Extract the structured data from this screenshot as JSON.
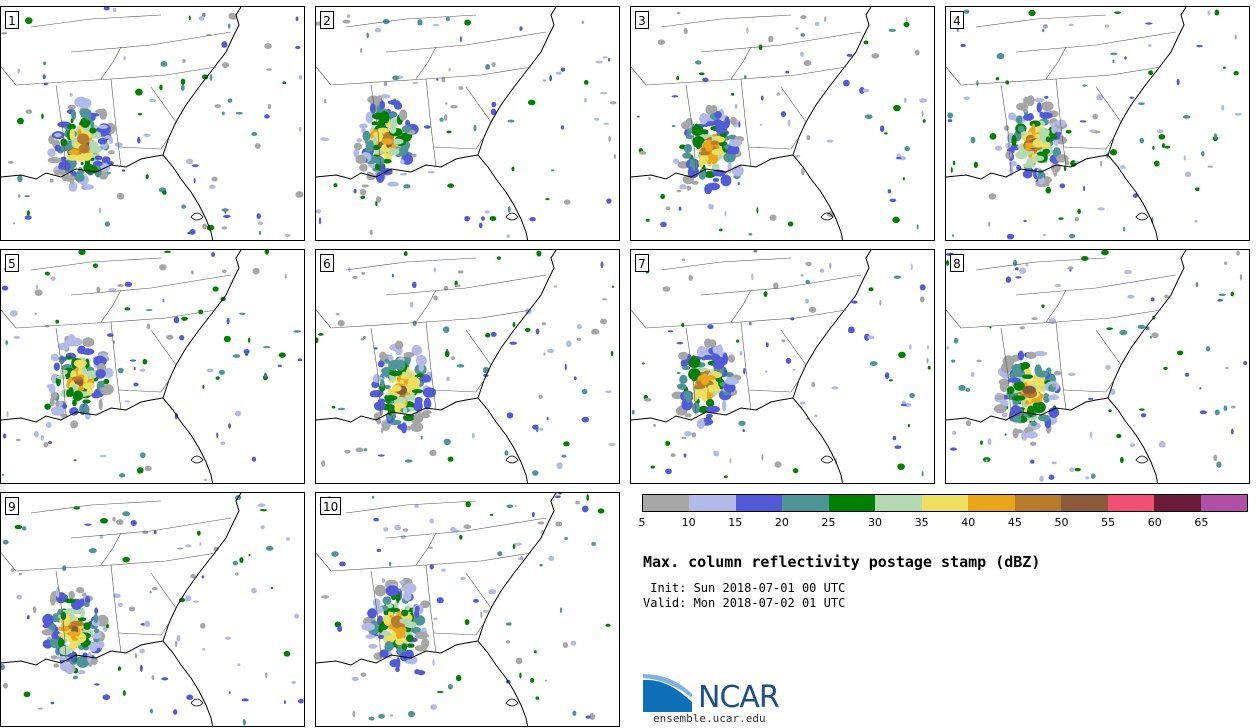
{
  "panels": [
    {
      "label": "1"
    },
    {
      "label": "2"
    },
    {
      "label": "3"
    },
    {
      "label": "4"
    },
    {
      "label": "5"
    },
    {
      "label": "6"
    },
    {
      "label": "7"
    },
    {
      "label": "8"
    },
    {
      "label": "9"
    },
    {
      "label": "10"
    }
  ],
  "colorbar": {
    "colors": [
      "#a6a6a6",
      "#b2bbe8",
      "#525bd6",
      "#4e9598",
      "#008000",
      "#b3d9b3",
      "#ede061",
      "#eaa61a",
      "#b57c2e",
      "#8a5a3a",
      "#ef4f73",
      "#6b1c3a",
      "#b04fa8"
    ],
    "ticks": [
      "5",
      "10",
      "15",
      "20",
      "25",
      "30",
      "35",
      "40",
      "45",
      "50",
      "55",
      "60",
      "65"
    ]
  },
  "title": "Max. column reflectivity postage stamp (dBZ)",
  "init": " Init: Sun 2018-07-01 00 UTC",
  "valid": "Valid: Mon 2018-07-02 01 UTC",
  "logo": {
    "text": "NCAR",
    "url": "ensemble.ucar.edu"
  }
}
